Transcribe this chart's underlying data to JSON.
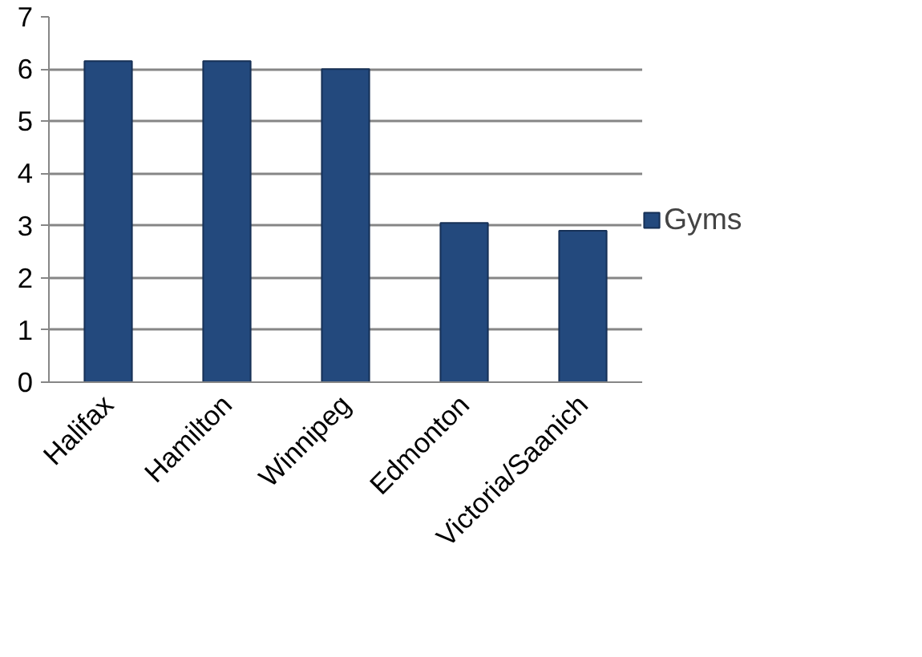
{
  "chart_data": {
    "type": "bar",
    "categories": [
      "Halifax",
      "Hamilton",
      "Winnipeg",
      "Edmonton",
      "Victoria/Saanich"
    ],
    "series": [
      {
        "name": "Gyms",
        "color": "#23497d",
        "values": [
          6.15,
          6.15,
          6.0,
          3.05,
          2.9
        ]
      }
    ],
    "ylim": [
      0,
      7
    ],
    "yticks": [
      0,
      1,
      2,
      3,
      4,
      5,
      6,
      7
    ],
    "grid": "y",
    "legend": "right"
  }
}
